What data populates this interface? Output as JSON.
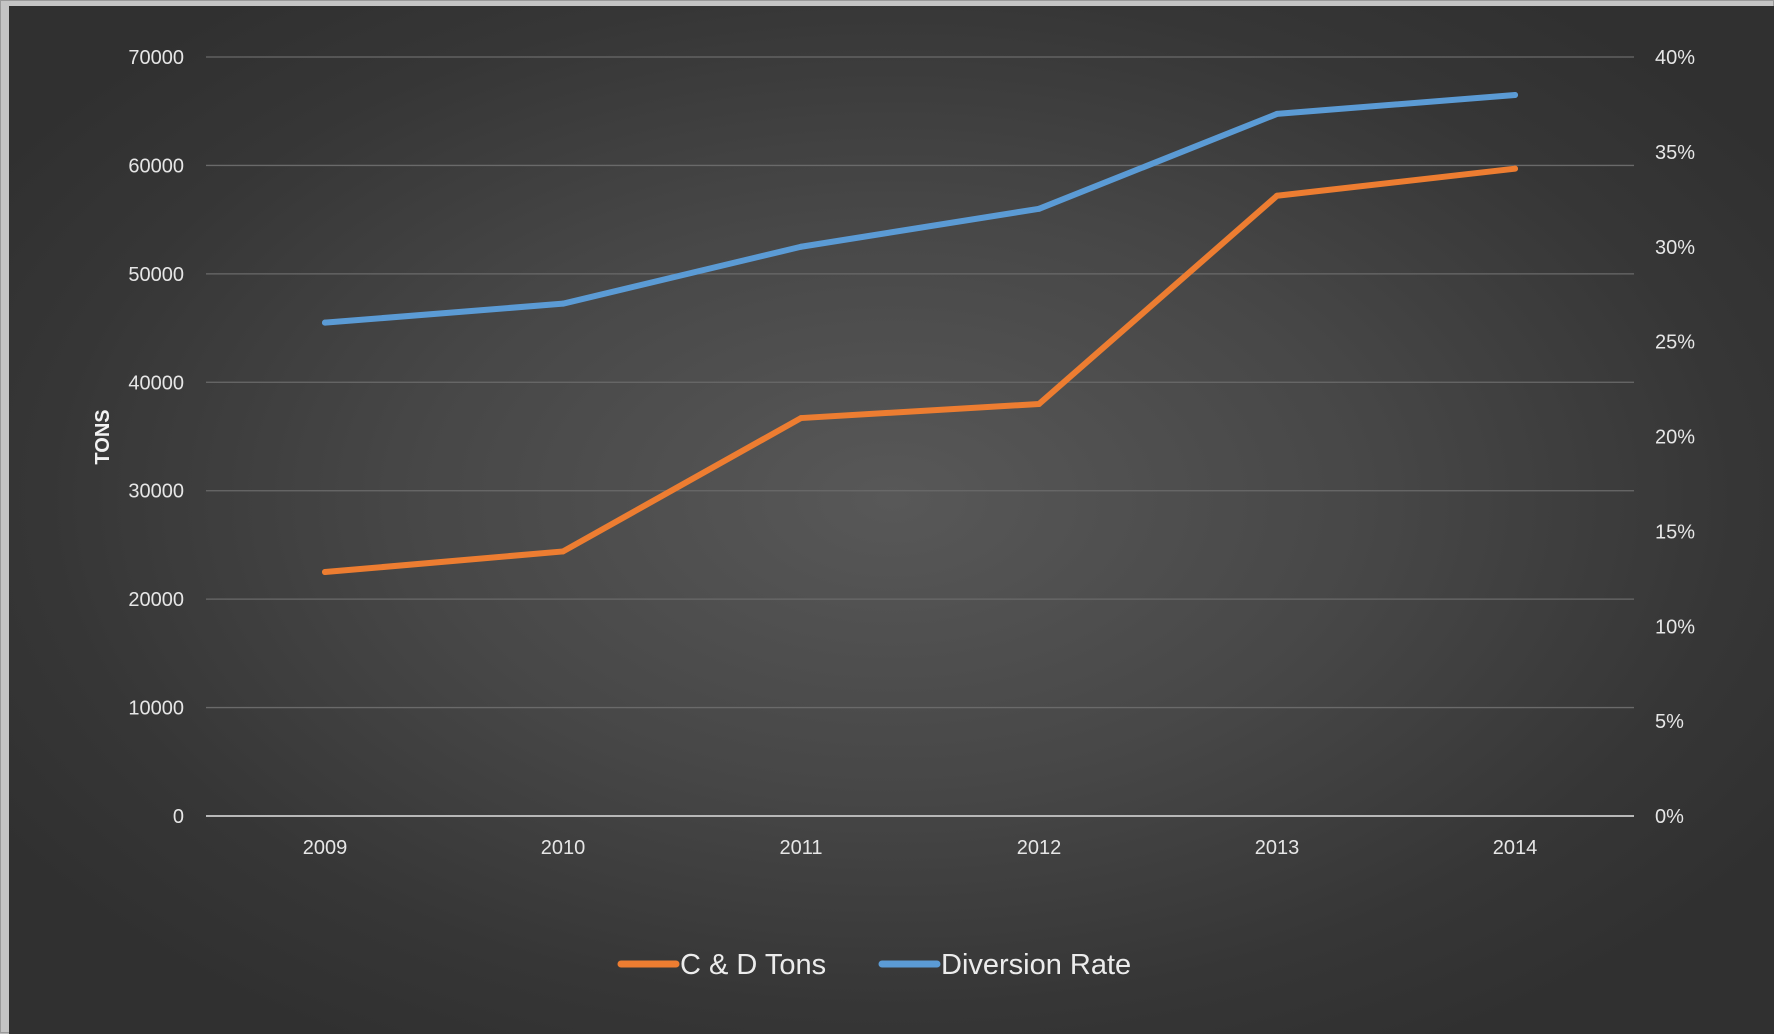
{
  "chart_data": {
    "type": "line",
    "title": "",
    "xlabel": "",
    "ylabel": "TONS",
    "y2label": "",
    "categories": [
      "2009",
      "2010",
      "2011",
      "2012",
      "2013",
      "2014"
    ],
    "ylim": [
      0,
      70000
    ],
    "y_ticks": [
      "0",
      "10000",
      "20000",
      "30000",
      "40000",
      "50000",
      "60000",
      "70000"
    ],
    "y2lim": [
      0,
      40
    ],
    "y2_ticks": [
      "0%",
      "5%",
      "10%",
      "15%",
      "20%",
      "25%",
      "30%",
      "35%",
      "40%"
    ],
    "grid": true,
    "legend_position": "bottom",
    "series": [
      {
        "name": "C & D Tons",
        "axis": "left",
        "color": "#ed7d31",
        "values": [
          22500,
          24400,
          36700,
          38000,
          57200,
          59700
        ]
      },
      {
        "name": "Diversion Rate",
        "axis": "right",
        "unit": "%",
        "color": "#5b9bd5",
        "values": [
          26,
          27,
          30,
          32,
          37,
          38
        ]
      }
    ]
  }
}
